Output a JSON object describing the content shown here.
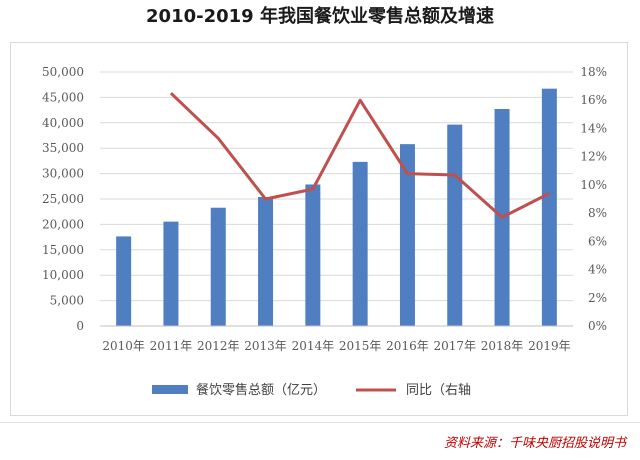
{
  "title": "2010-2019 年我国餐饮业零售总额及增速",
  "source": "资料来源：千味央厨招股说明书",
  "colors": {
    "bar": "#4f7fc1",
    "line": "#c0504d",
    "grid": "#d9d9d9"
  },
  "chart_data": {
    "type": "bar",
    "title": "2010-2019 年我国餐饮业零售总额及增速",
    "categories": [
      "2010年",
      "2011年",
      "2012年",
      "2013年",
      "2014年",
      "2015年",
      "2016年",
      "2017年",
      "2018年",
      "2019年"
    ],
    "series": [
      {
        "name": "餐饮零售总额（亿元）",
        "type": "bar",
        "axis": "left",
        "values": [
          17636,
          20543,
          23283,
          25392,
          27860,
          32310,
          35799,
          39644,
          42716,
          46721
        ]
      },
      {
        "name": "同比（右轴",
        "type": "line",
        "axis": "right",
        "values": [
          null,
          16.5,
          13.3,
          9.0,
          9.7,
          16.0,
          10.8,
          10.7,
          7.7,
          9.4
        ]
      }
    ],
    "ylim_left": [
      0,
      50000
    ],
    "yticks_left": [
      "0",
      "5,000",
      "10,000",
      "15,000",
      "20,000",
      "25,000",
      "30,000",
      "35,000",
      "40,000",
      "45,000",
      "50,000"
    ],
    "ylim_right": [
      0,
      18
    ],
    "yticks_right": [
      "0%",
      "2%",
      "4%",
      "6%",
      "8%",
      "10%",
      "12%",
      "14%",
      "16%",
      "18%"
    ],
    "grid": true,
    "legend": "bottom"
  }
}
